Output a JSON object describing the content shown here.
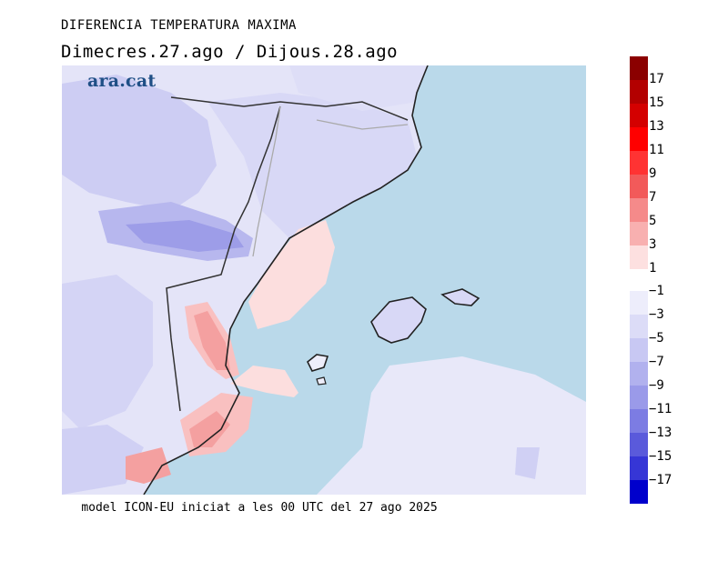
{
  "header": {
    "title": "DIFERENCIA TEMPERATURA MAXIMA",
    "subtitle": "Dimecres.27.ago / Dijous.28.ago"
  },
  "logo_text": "ara.cat",
  "footer": {
    "text": "model ICON-EU iniciat a les 00 UTC del 27 ago 2025"
  },
  "legend": {
    "warm": [
      {
        "label": "17",
        "color": "#8b0000"
      },
      {
        "label": "15",
        "color": "#b30000"
      },
      {
        "label": "13",
        "color": "#d40000"
      },
      {
        "label": "11",
        "color": "#ff0000"
      },
      {
        "label": "9",
        "color": "#ff3333"
      },
      {
        "label": "7",
        "color": "#f25a5a"
      },
      {
        "label": "5",
        "color": "#f58a8a"
      },
      {
        "label": "3",
        "color": "#f8b0b0"
      },
      {
        "label": "1",
        "color": "#fde0e0"
      }
    ],
    "cold": [
      {
        "label": "-1",
        "color": "#ededfb"
      },
      {
        "label": "-3",
        "color": "#dcdcf7"
      },
      {
        "label": "-5",
        "color": "#c8c8f3"
      },
      {
        "label": "-7",
        "color": "#b1b1ee"
      },
      {
        "label": "-9",
        "color": "#9a9ae9"
      },
      {
        "label": "-11",
        "color": "#7c7ce3"
      },
      {
        "label": "-13",
        "color": "#5a5adb"
      },
      {
        "label": "-15",
        "color": "#3636d6"
      },
      {
        "label": "-17",
        "color": "#0000cc"
      }
    ]
  },
  "map_colors": {
    "sea": "#bad9ea",
    "coast": "#222222",
    "border_light": "#aaaaaa"
  }
}
